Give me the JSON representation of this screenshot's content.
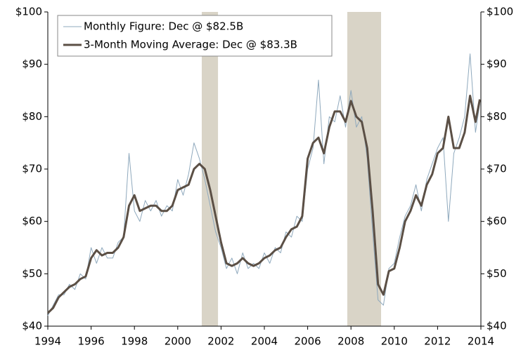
{
  "chart_data": {
    "type": "line",
    "x": [
      1994,
      1994.25,
      1994.5,
      1994.75,
      1995,
      1995.25,
      1995.5,
      1995.75,
      1996,
      1996.25,
      1996.5,
      1996.75,
      1997,
      1997.25,
      1997.5,
      1997.75,
      1998,
      1998.25,
      1998.5,
      1998.75,
      1999,
      1999.25,
      1999.5,
      1999.75,
      2000,
      2000.25,
      2000.5,
      2000.75,
      2001,
      2001.25,
      2001.5,
      2001.75,
      2002,
      2002.25,
      2002.5,
      2002.75,
      2003,
      2003.25,
      2003.5,
      2003.75,
      2004,
      2004.25,
      2004.5,
      2004.75,
      2005,
      2005.25,
      2005.5,
      2005.75,
      2006,
      2006.25,
      2006.5,
      2006.75,
      2007,
      2007.25,
      2007.5,
      2007.75,
      2008,
      2008.25,
      2008.5,
      2008.75,
      2009,
      2009.25,
      2009.5,
      2009.75,
      2010,
      2010.25,
      2010.5,
      2010.75,
      2011,
      2011.25,
      2011.5,
      2011.75,
      2012,
      2012.25,
      2012.5,
      2012.75,
      2013,
      2013.25,
      2013.5,
      2013.75,
      2013.95
    ],
    "series": [
      {
        "name": "Monthly Figure: Dec @ $82.5B",
        "color": "#8fa9bd",
        "values": [
          42,
          44,
          46,
          46,
          48,
          47,
          50,
          49,
          55,
          52,
          55,
          53,
          53,
          56,
          57,
          73,
          62,
          60,
          64,
          62,
          64,
          61,
          63,
          62,
          68,
          65,
          69,
          75,
          72,
          68,
          63,
          58,
          55,
          51,
          53,
          50,
          54,
          51,
          52,
          51,
          54,
          52,
          55,
          54,
          58,
          57,
          61,
          60,
          70,
          74,
          87,
          71,
          80,
          79,
          84,
          78,
          85,
          78,
          80,
          72,
          58,
          45,
          44,
          51,
          52,
          57,
          61,
          63,
          67,
          62,
          68,
          71,
          74,
          76,
          60,
          73,
          76,
          80,
          92,
          77,
          82.5
        ]
      },
      {
        "name": "3-Month Moving Average: Dec @ $83.3B",
        "color": "#5b4f45",
        "values": [
          42.5,
          43.5,
          45.5,
          46.5,
          47.5,
          48,
          49,
          49.5,
          53,
          54.5,
          53.5,
          54,
          54,
          55,
          57,
          63,
          65,
          62,
          62.5,
          63,
          63,
          62,
          62,
          63,
          66,
          66.5,
          67,
          70,
          71,
          70,
          66,
          61,
          56,
          52,
          51.5,
          52,
          53,
          52,
          51.5,
          52,
          53,
          53.5,
          54.5,
          55,
          57,
          58.5,
          59,
          61,
          72,
          75,
          76,
          73,
          78,
          81,
          81,
          79,
          83,
          80,
          79,
          74,
          62,
          48,
          46,
          50.5,
          51,
          55,
          60,
          62,
          65,
          63,
          67,
          69,
          73,
          74,
          80,
          74,
          74,
          77,
          84,
          79,
          83.3
        ]
      }
    ],
    "recessions": [
      [
        2001.11,
        2001.86
      ],
      [
        2007.83,
        2009.39
      ]
    ],
    "recession_color": "#d9d4c7",
    "xlim": [
      1994,
      2014
    ],
    "xticks": [
      1994,
      1996,
      1998,
      2000,
      2002,
      2004,
      2006,
      2008,
      2010,
      2012,
      2014
    ],
    "ylim": [
      40,
      100
    ],
    "yticks": [
      {
        "value": 40,
        "label": "$40"
      },
      {
        "value": 50,
        "label": "$50"
      },
      {
        "value": 60,
        "label": "$60"
      },
      {
        "value": 70,
        "label": "$70"
      },
      {
        "value": 80,
        "label": "$80"
      },
      {
        "value": 90,
        "label": "$90"
      },
      {
        "value": 100,
        "label": "$100"
      }
    ],
    "y2lim": [
      40,
      100
    ],
    "y2ticks": [
      {
        "value": 40,
        "label": "$40"
      },
      {
        "value": 50,
        "label": "$50"
      },
      {
        "value": 60,
        "label": "$60"
      },
      {
        "value": 70,
        "label": "$70"
      },
      {
        "value": 80,
        "label": "$80"
      },
      {
        "value": 90,
        "label": "$90"
      },
      {
        "value": 100,
        "label": "$100"
      }
    ],
    "legend": "upper left"
  }
}
